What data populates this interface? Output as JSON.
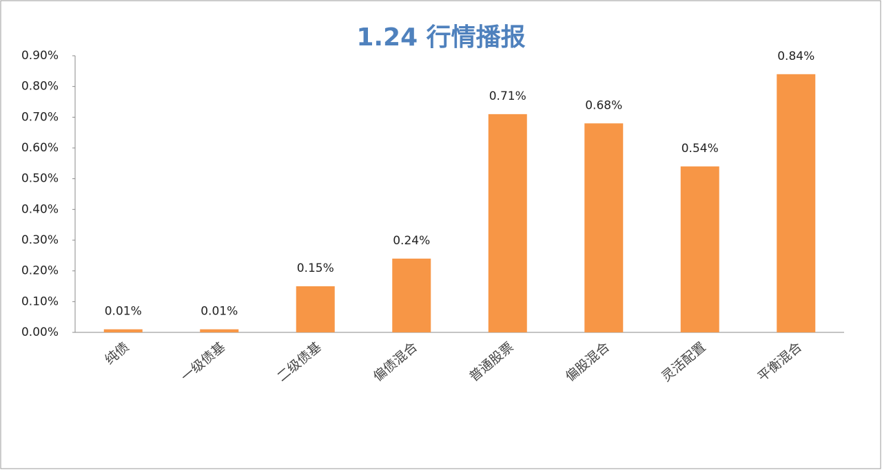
{
  "chart_data": {
    "type": "bar",
    "title": "1.24 行情播报",
    "categories": [
      "纯债",
      "一级债基",
      "二级债基",
      "偏债混合",
      "普通股票",
      "偏股混合",
      "灵活配置",
      "平衡混合"
    ],
    "values": [
      0.01,
      0.01,
      0.15,
      0.24,
      0.71,
      0.68,
      0.54,
      0.84
    ],
    "value_labels": [
      "0.01%",
      "0.01%",
      "0.15%",
      "0.24%",
      "0.71%",
      "0.68%",
      "0.54%",
      "0.84%"
    ],
    "color": "#f79646",
    "ylim": [
      0,
      0.9
    ],
    "yticks": [
      {
        "value": 0,
        "label": "0.00%"
      },
      {
        "value": 0.1,
        "label": "0.10%"
      },
      {
        "value": 0.2,
        "label": "0.20%"
      },
      {
        "value": 0.3,
        "label": "0.30%"
      },
      {
        "value": 0.4,
        "label": "0.40%"
      },
      {
        "value": 0.5,
        "label": "0.50%"
      },
      {
        "value": 0.6,
        "label": "0.60%"
      },
      {
        "value": 0.7,
        "label": "0.70%"
      },
      {
        "value": 0.8,
        "label": "0.80%"
      },
      {
        "value": 0.9,
        "label": "0.90%"
      }
    ],
    "grid": false
  }
}
